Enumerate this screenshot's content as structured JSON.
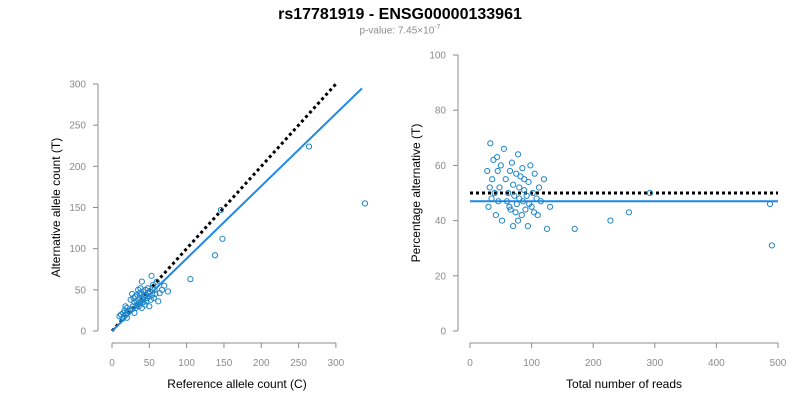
{
  "title": "rs17781919 - ENSG00000133961",
  "subtitle": {
    "prefix": "p-value: 7.45×10",
    "exponent": "-7"
  },
  "colors": {
    "points": "#1f86c9",
    "fit_line": "#1e88e5",
    "reference_line": "#000000",
    "axis": "#8c8c8c"
  },
  "chart_data": [
    {
      "type": "scatter",
      "xlabel": "Reference allele count (C)",
      "ylabel": "Alternative allele count (T)",
      "xlim": [
        0,
        335
      ],
      "ylim": [
        0,
        300
      ],
      "xticks": [
        0,
        50,
        100,
        150,
        200,
        250,
        300
      ],
      "yticks": [
        0,
        50,
        100,
        150,
        200,
        250,
        300
      ],
      "x": [
        10,
        12,
        14,
        15,
        16,
        17,
        18,
        18,
        20,
        20,
        22,
        24,
        25,
        26,
        27,
        28,
        29,
        30,
        30,
        31,
        32,
        33,
        34,
        34,
        35,
        35,
        36,
        37,
        37,
        38,
        38,
        39,
        40,
        40,
        41,
        42,
        42,
        43,
        44,
        45,
        45,
        46,
        47,
        48,
        49,
        50,
        50,
        51,
        52,
        53,
        54,
        55,
        56,
        57,
        58,
        60,
        62,
        64,
        67,
        70,
        75,
        105,
        138,
        146,
        148,
        264,
        339
      ],
      "y": [
        18,
        20,
        15,
        22,
        18,
        25,
        20,
        30,
        16,
        28,
        24,
        25,
        38,
        26,
        45,
        30,
        40,
        22,
        35,
        42,
        28,
        36,
        44,
        32,
        50,
        38,
        30,
        46,
        40,
        52,
        34,
        45,
        28,
        60,
        38,
        48,
        35,
        42,
        32,
        44,
        50,
        36,
        40,
        52,
        46,
        30,
        42,
        48,
        38,
        67,
        44,
        56,
        40,
        50,
        45,
        60,
        36,
        46,
        50,
        55,
        48,
        63,
        92,
        147,
        112,
        224,
        155
      ],
      "series": [
        {
          "name": "",
          "style": "dotted",
          "intercept": 0,
          "slope": 1
        },
        {
          "name": "",
          "style": "solid",
          "intercept": 0,
          "slope": 0.88
        }
      ]
    },
    {
      "type": "scatter",
      "xlabel": "Total number of reads",
      "ylabel": "Percentage alternative (T)",
      "xlim": [
        0,
        500
      ],
      "ylim": [
        0,
        100
      ],
      "xticks": [
        0,
        100,
        200,
        300,
        400,
        500
      ],
      "yticks": [
        0,
        20,
        40,
        60,
        80,
        100
      ],
      "x": [
        28,
        30,
        32,
        33,
        35,
        36,
        38,
        40,
        42,
        44,
        45,
        46,
        48,
        50,
        52,
        55,
        58,
        60,
        62,
        64,
        65,
        66,
        68,
        70,
        70,
        72,
        74,
        75,
        76,
        78,
        78,
        80,
        80,
        82,
        84,
        85,
        86,
        88,
        88,
        90,
        92,
        94,
        95,
        96,
        98,
        100,
        102,
        104,
        105,
        108,
        110,
        112,
        115,
        120,
        125,
        130,
        170,
        228,
        258,
        292,
        487,
        490
      ],
      "y": [
        58,
        45,
        52,
        68,
        48,
        55,
        62,
        50,
        42,
        63,
        58,
        47,
        52,
        60,
        40,
        66,
        55,
        47,
        50,
        45,
        58,
        44,
        61,
        53,
        38,
        49,
        43,
        57,
        46,
        64,
        40,
        52,
        48,
        56,
        42,
        59,
        47,
        51,
        55,
        44,
        49,
        38,
        54,
        46,
        60,
        45,
        50,
        43,
        57,
        48,
        42,
        52,
        47,
        55,
        37,
        45,
        37,
        40,
        43,
        50,
        46,
        31
      ],
      "series": [
        {
          "name": "",
          "style": "dotted",
          "y": 50
        },
        {
          "name": "",
          "style": "solid",
          "y": 47
        }
      ]
    }
  ]
}
